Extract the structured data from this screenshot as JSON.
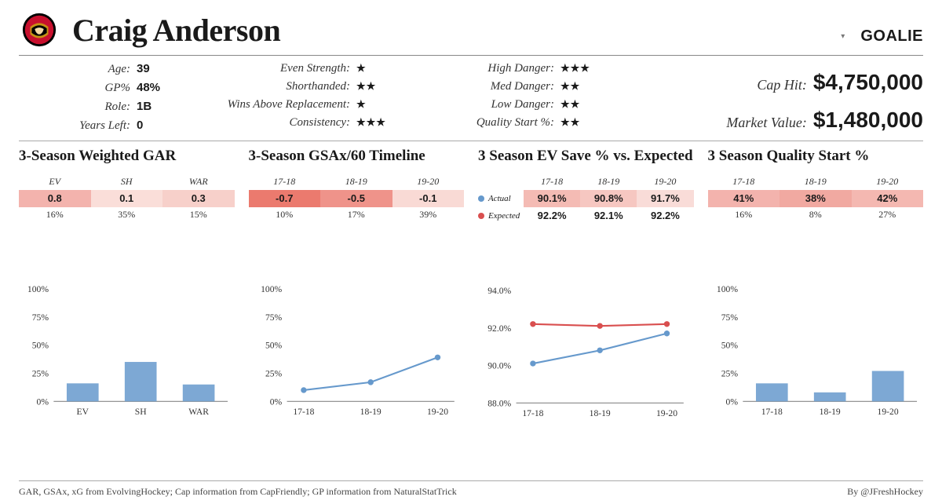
{
  "player": {
    "name": "Craig Anderson",
    "position": "GOALIE"
  },
  "team_logo": {
    "primary": "#c8102e",
    "secondary": "#000000",
    "accent": "#c69214"
  },
  "basics": {
    "items": [
      {
        "k": "Age:",
        "v": "39"
      },
      {
        "k": "GP%",
        "v": "48%"
      },
      {
        "k": "Role:",
        "v": "1B"
      },
      {
        "k": "Years Left:",
        "v": "0"
      }
    ]
  },
  "stars_a": {
    "items": [
      {
        "k": "Even Strength:",
        "stars": 1
      },
      {
        "k": "Shorthanded:",
        "stars": 2
      },
      {
        "k": "Wins Above Replacement:",
        "stars": 1
      },
      {
        "k": "Consistency:",
        "stars": 3
      }
    ]
  },
  "stars_b": {
    "items": [
      {
        "k": "High Danger:",
        "stars": 3
      },
      {
        "k": "Med Danger:",
        "stars": 2
      },
      {
        "k": "Low Danger:",
        "stars": 2
      },
      {
        "k": "Quality Start %:",
        "stars": 2
      }
    ]
  },
  "money": {
    "cap_hit": {
      "k": "Cap Hit:",
      "v": "$4,750,000"
    },
    "market": {
      "k": "Market Value:",
      "v": "$1,480,000"
    }
  },
  "heat_scale": {
    "good_low": "#fdecea",
    "good_high": "#e26b5d",
    "neutral": "#f7f1f0"
  },
  "panels": {
    "gar": {
      "title": "3-Season Weighted GAR",
      "headers": [
        "EV",
        "SH",
        "WAR"
      ],
      "values": [
        "0.8",
        "0.1",
        "0.3"
      ],
      "cell_bg": [
        "#f3b3ad",
        "#faded9",
        "#f7d0ca"
      ],
      "pct": [
        "16%",
        "35%",
        "15%"
      ],
      "bar_chart": {
        "type": "bar",
        "categories": [
          "EV",
          "SH",
          "WAR"
        ],
        "values_pct": [
          16,
          35,
          15
        ],
        "bar_color": "#6699cc",
        "axis_color": "#888",
        "ylim": [
          0,
          100
        ],
        "yticks": [
          0,
          25,
          50,
          75,
          100
        ],
        "ytick_labels": [
          "0%",
          "25%",
          "50%",
          "75%",
          "100%"
        ]
      }
    },
    "gsax": {
      "title": "3-Season GSAx/60 Timeline",
      "headers": [
        "17-18",
        "18-19",
        "19-20"
      ],
      "values": [
        "-0.7",
        "-0.5",
        "-0.1"
      ],
      "cell_bg": [
        "#eb7a6e",
        "#ef938a",
        "#f9dad5"
      ],
      "pct": [
        "10%",
        "17%",
        "39%"
      ],
      "line_chart": {
        "type": "line",
        "x_labels": [
          "17-18",
          "18-19",
          "19-20"
        ],
        "values_pct": [
          10,
          17,
          39
        ],
        "line_color": "#6699cc",
        "axis_color": "#888",
        "ylim": [
          0,
          100
        ],
        "yticks": [
          0,
          25,
          50,
          75,
          100
        ],
        "ytick_labels": [
          "0%",
          "25%",
          "50%",
          "75%",
          "100%"
        ]
      }
    },
    "evsv": {
      "title": "3 Season EV Save % vs. Expected",
      "headers": [
        "17-18",
        "18-19",
        "19-20"
      ],
      "legend_actual": {
        "label": "Actual",
        "color": "#6699cc"
      },
      "legend_expected": {
        "label": "Expected",
        "color": "#d94f4f"
      },
      "actual": [
        "90.1%",
        "90.8%",
        "91.7%"
      ],
      "actual_bg": [
        "#f4bbb4",
        "#f6c7c1",
        "#f9dcd8"
      ],
      "expected": [
        "92.2%",
        "92.1%",
        "92.2%"
      ],
      "chart": {
        "type": "line",
        "x_labels": [
          "17-18",
          "18-19",
          "19-20"
        ],
        "series": [
          {
            "name": "Actual",
            "color": "#6699cc",
            "values": [
              90.1,
              90.8,
              91.7
            ]
          },
          {
            "name": "Expected",
            "color": "#d94f4f",
            "values": [
              92.2,
              92.1,
              92.2
            ]
          }
        ],
        "ylim": [
          88,
          94
        ],
        "yticks": [
          88,
          90,
          92,
          94
        ],
        "ytick_labels": [
          "88.0%",
          "90.0%",
          "92.0%",
          "94.0%"
        ],
        "axis_color": "#888"
      }
    },
    "qs": {
      "title": "3 Season Quality Start %",
      "headers": [
        "17-18",
        "18-19",
        "19-20"
      ],
      "values": [
        "41%",
        "38%",
        "42%"
      ],
      "cell_bg": [
        "#f3b3ad",
        "#f1a9a1",
        "#f4b8b1"
      ],
      "pct": [
        "16%",
        "8%",
        "27%"
      ],
      "bar_chart": {
        "type": "bar",
        "categories": [
          "17-18",
          "18-19",
          "19-20"
        ],
        "values_pct": [
          16,
          8,
          27
        ],
        "bar_color": "#6699cc",
        "axis_color": "#888",
        "ylim": [
          0,
          100
        ],
        "yticks": [
          0,
          25,
          50,
          75,
          100
        ],
        "ytick_labels": [
          "0%",
          "25%",
          "50%",
          "75%",
          "100%"
        ]
      }
    }
  },
  "footer": {
    "left": "GAR, GSAx, xG from EvolvingHockey; Cap information from CapFriendly; GP information from NaturalStatTrick",
    "right": "By @JFreshHockey"
  }
}
